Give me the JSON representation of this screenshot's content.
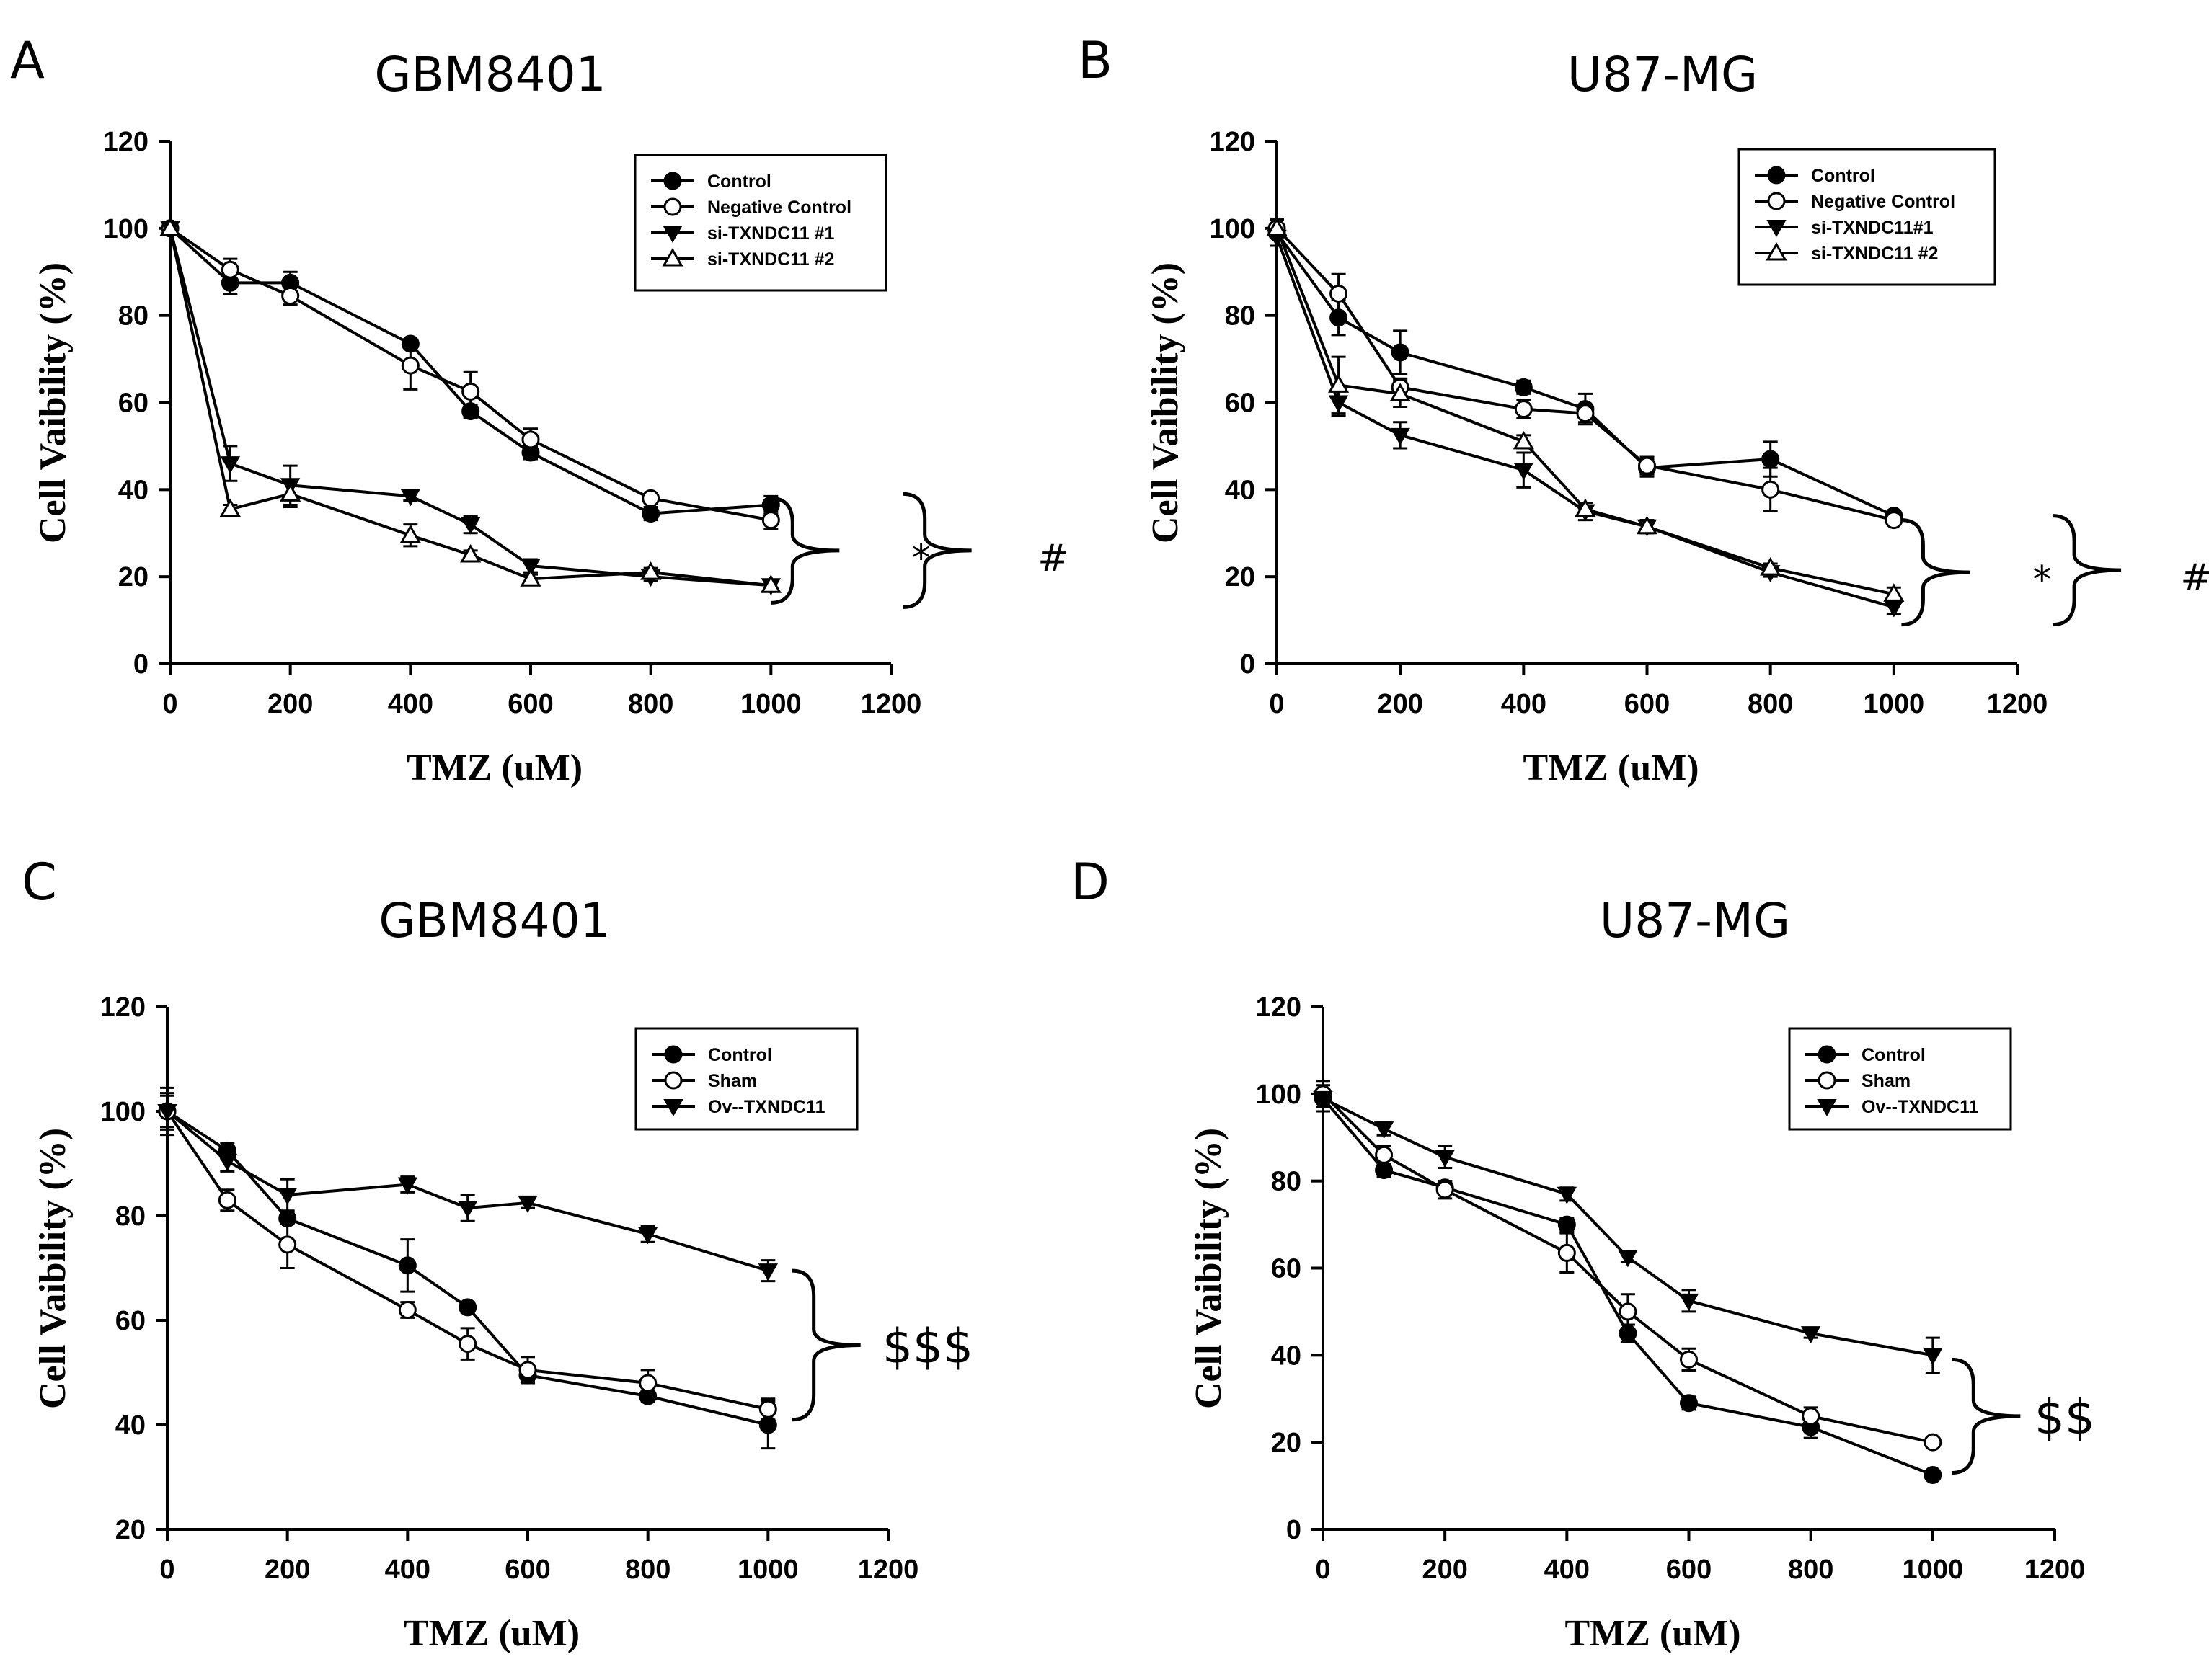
{
  "chart_data": [
    {
      "panel": "A",
      "type": "line",
      "title": "GBM8401",
      "xlabel": "TMZ (uM)",
      "ylabel": "Cell Vaibility (%)",
      "xlim": [
        0,
        1200
      ],
      "ylim": [
        0,
        120
      ],
      "xticks": [
        0,
        200,
        400,
        600,
        800,
        1000,
        1200
      ],
      "yticks": [
        0,
        20,
        40,
        60,
        80,
        100,
        120
      ],
      "legend_position": "top-right",
      "series": [
        {
          "name": "Control",
          "marker": "circle-filled",
          "x": [
            0,
            100,
            200,
            400,
            500,
            600,
            800,
            1000
          ],
          "y": [
            100,
            87.5,
            87.5,
            73.5,
            58,
            48.5,
            34.5,
            36.5
          ],
          "err": [
            1.5,
            2.5,
            2.5,
            1.0,
            1.5,
            1.5,
            1.5,
            2.0
          ]
        },
        {
          "name": "Negative Control",
          "marker": "circle-open",
          "x": [
            0,
            100,
            200,
            400,
            500,
            600,
            800,
            1000
          ],
          "y": [
            100,
            90.5,
            84.5,
            68.5,
            62.5,
            51.5,
            38,
            33
          ],
          "err": [
            1.5,
            2.5,
            2.0,
            5.5,
            4.5,
            2.5,
            1.0,
            2.0
          ]
        },
        {
          "name": "si-TXNDC11 #1",
          "marker": "triangle-down-filled",
          "x": [
            0,
            100,
            200,
            400,
            500,
            600,
            800,
            1000
          ],
          "y": [
            100,
            46,
            41,
            38.5,
            32,
            22.5,
            20,
            18
          ],
          "err": [
            1.5,
            4.0,
            4.5,
            1.0,
            2.0,
            1.5,
            1.0,
            1.0
          ]
        },
        {
          "name": "si-TXNDC11 #2",
          "marker": "triangle-up-open",
          "x": [
            0,
            100,
            200,
            400,
            500,
            600,
            800,
            1000
          ],
          "y": [
            100,
            35.5,
            39,
            29.5,
            25,
            19.5,
            21,
            18
          ],
          "err": [
            1.5,
            1.0,
            3.0,
            2.5,
            1.0,
            1.0,
            1.0,
            1.0
          ]
        }
      ],
      "annotations": [
        {
          "symbol": "*",
          "from_y": 38,
          "to_y": 14,
          "tip_x": 1090,
          "label_x": 1250
        },
        {
          "symbol": "#",
          "from_y": 39,
          "to_y": 13,
          "tip_x": 1310,
          "label_x": 1470
        }
      ]
    },
    {
      "panel": "B",
      "type": "line",
      "title": "U87-MG",
      "xlabel": "TMZ (uM)",
      "ylabel": "Cell Vaibility (%)",
      "xlim": [
        0,
        1200
      ],
      "ylim": [
        0,
        120
      ],
      "xticks": [
        0,
        200,
        400,
        600,
        800,
        1000,
        1200
      ],
      "yticks": [
        0,
        20,
        40,
        60,
        80,
        100,
        120
      ],
      "legend_position": "top-right",
      "series": [
        {
          "name": "Control",
          "marker": "circle-filled",
          "x": [
            0,
            100,
            200,
            400,
            500,
            600,
            800,
            1000
          ],
          "y": [
            99,
            79.5,
            71.5,
            63.5,
            58.5,
            45,
            47,
            34
          ],
          "err": [
            3.0,
            4.0,
            5.0,
            1.5,
            3.5,
            2.0,
            4.0,
            1.0
          ]
        },
        {
          "name": "Negative Control",
          "marker": "circle-open",
          "x": [
            0,
            100,
            200,
            400,
            500,
            600,
            800,
            1000
          ],
          "y": [
            100,
            85,
            63.5,
            58.5,
            57.5,
            45.5,
            40,
            33
          ],
          "err": [
            2.0,
            4.5,
            2.0,
            2.0,
            2.0,
            2.0,
            5.0,
            1.0
          ]
        },
        {
          "name": "si-TXNDC11#1",
          "marker": "triangle-down-filled",
          "x": [
            0,
            100,
            200,
            400,
            500,
            600,
            800,
            1000
          ],
          "y": [
            98,
            60,
            52.5,
            44.5,
            35,
            31.5,
            21,
            13
          ],
          "err": [
            2.0,
            3.0,
            3.0,
            4.0,
            2.0,
            1.5,
            1.0,
            1.5
          ]
        },
        {
          "name": "si-TXNDC11 #2",
          "marker": "triangle-up-open",
          "x": [
            0,
            100,
            200,
            400,
            500,
            600,
            800,
            1000
          ],
          "y": [
            100,
            64,
            62,
            51,
            35.5,
            31.5,
            22,
            16
          ],
          "err": [
            2.0,
            6.5,
            3.0,
            1.5,
            1.5,
            1.5,
            1.0,
            1.5
          ]
        }
      ],
      "annotations": [
        {
          "symbol": "*",
          "from_y": 33,
          "to_y": 9,
          "tip_x": 1100,
          "label_x": 1240
        },
        {
          "symbol": "#",
          "from_y": 34,
          "to_y": 9,
          "tip_x": 1345,
          "label_x": 1490
        }
      ]
    },
    {
      "panel": "C",
      "type": "line",
      "title": "GBM8401",
      "xlabel": "TMZ (uM)",
      "ylabel": "Cell Vaibility (%)",
      "xlim": [
        0,
        1200
      ],
      "ylim": [
        20,
        120
      ],
      "xticks": [
        0,
        200,
        400,
        600,
        800,
        1000,
        1200
      ],
      "yticks": [
        20,
        40,
        60,
        80,
        100,
        120
      ],
      "legend_position": "top-right",
      "series": [
        {
          "name": "Control",
          "marker": "circle-filled",
          "x": [
            0,
            100,
            200,
            400,
            500,
            600,
            800,
            1000
          ],
          "y": [
            100,
            92.5,
            79.5,
            70.5,
            62.5,
            49.5,
            45.5,
            40
          ],
          "err": [
            4.5,
            1.5,
            1.0,
            5.0,
            1.0,
            1.0,
            1.0,
            4.5
          ]
        },
        {
          "name": "Sham",
          "marker": "circle-open",
          "x": [
            0,
            100,
            200,
            400,
            500,
            600,
            800,
            1000
          ],
          "y": [
            100,
            83,
            74.5,
            62,
            55.5,
            50.5,
            48,
            43
          ],
          "err": [
            3.5,
            2.0,
            4.5,
            1.5,
            3.0,
            2.5,
            2.5,
            2.0
          ]
        },
        {
          "name": "Ov--TXNDC11",
          "marker": "triangle-down-filled",
          "x": [
            0,
            100,
            200,
            400,
            500,
            600,
            800,
            1000
          ],
          "y": [
            100,
            90.5,
            84,
            86,
            81.5,
            82.5,
            76.5,
            69.5
          ],
          "err": [
            3.0,
            2.0,
            3.0,
            1.5,
            2.5,
            1.0,
            1.5,
            2.0
          ]
        }
      ],
      "annotations": [
        {
          "symbol": "$$$",
          "from_y": 69.5,
          "to_y": 41,
          "tip_x": 1130,
          "label_x": 1290
        }
      ]
    },
    {
      "panel": "D",
      "type": "line",
      "title": "U87-MG",
      "xlabel": "TMZ (uM)",
      "ylabel": "Cell Vaibility (%)",
      "xlim": [
        0,
        1200
      ],
      "ylim": [
        0,
        120
      ],
      "xticks": [
        0,
        200,
        400,
        600,
        800,
        1000,
        1200
      ],
      "yticks": [
        0,
        20,
        40,
        60,
        80,
        100,
        120
      ],
      "legend_position": "top-right",
      "series": [
        {
          "name": "Control",
          "marker": "circle-filled",
          "x": [
            0,
            100,
            200,
            400,
            500,
            600,
            800,
            1000
          ],
          "y": [
            99,
            82.5,
            78.5,
            70,
            45,
            29,
            23.5,
            12.5
          ],
          "err": [
            2.0,
            1.5,
            1.5,
            1.5,
            2.0,
            1.5,
            2.5,
            1.0
          ]
        },
        {
          "name": "Sham",
          "marker": "circle-open",
          "x": [
            0,
            100,
            200,
            400,
            500,
            600,
            800,
            1000
          ],
          "y": [
            100,
            86,
            78,
            63.5,
            50,
            39,
            26,
            20
          ],
          "err": [
            3.0,
            2.0,
            2.0,
            4.5,
            4.0,
            2.5,
            2.0,
            1.0
          ]
        },
        {
          "name": "Ov--TXNDC11",
          "marker": "triangle-down-filled",
          "x": [
            0,
            100,
            200,
            400,
            500,
            600,
            800,
            1000
          ],
          "y": [
            99,
            92,
            85.5,
            77,
            62.5,
            52.5,
            45,
            40
          ],
          "err": [
            3.0,
            1.5,
            2.5,
            1.5,
            1.0,
            2.5,
            1.0,
            4.0
          ]
        }
      ],
      "annotations": [
        {
          "symbol": "$$",
          "from_y": 39,
          "to_y": 13,
          "tip_x": 1120,
          "label_x": 1240
        }
      ]
    }
  ],
  "colors": {
    "ink": "#000000",
    "background": "#ffffff"
  },
  "legend_header": null
}
